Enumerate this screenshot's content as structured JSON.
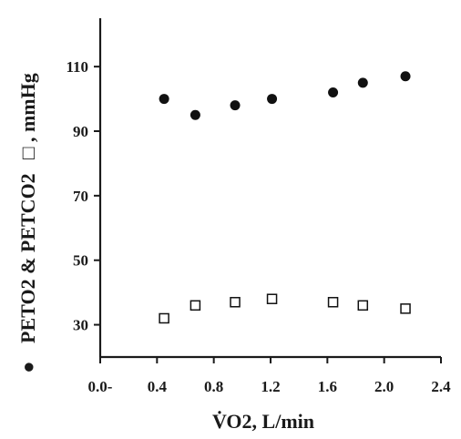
{
  "chart_data": {
    "type": "scatter",
    "xlabel": "V̇O2, L/min",
    "ylabel_parts": {
      "series1_marker": "●",
      "text": "PETO2 & PETCO2",
      "series2_marker": "□",
      "unit": ", mmHg"
    },
    "xlim": [
      0,
      2.4
    ],
    "ylim": [
      20,
      125
    ],
    "x_ticks": [
      0.0,
      0.4,
      0.8,
      1.2,
      1.6,
      2.0,
      2.4
    ],
    "x_tick_labels": [
      "0.0-",
      "0.4",
      "0.8",
      "1.2",
      "1.6",
      "2.0",
      "2.4"
    ],
    "y_ticks": [
      30,
      50,
      70,
      90,
      110
    ],
    "y_tick_labels": [
      "30",
      "50",
      "70",
      "90",
      "110"
    ],
    "grid": false,
    "series": [
      {
        "marker": "filled-circle",
        "color": "#111111",
        "x": [
          0.45,
          0.67,
          0.95,
          1.21,
          1.64,
          1.85,
          2.15
        ],
        "y": [
          100,
          95,
          98,
          100,
          102,
          105,
          107
        ]
      },
      {
        "marker": "open-square",
        "color": "#111111",
        "x": [
          0.45,
          0.67,
          0.95,
          1.21,
          1.64,
          1.85,
          2.15
        ],
        "y": [
          32,
          36,
          37,
          38,
          37,
          36,
          35
        ]
      }
    ]
  }
}
